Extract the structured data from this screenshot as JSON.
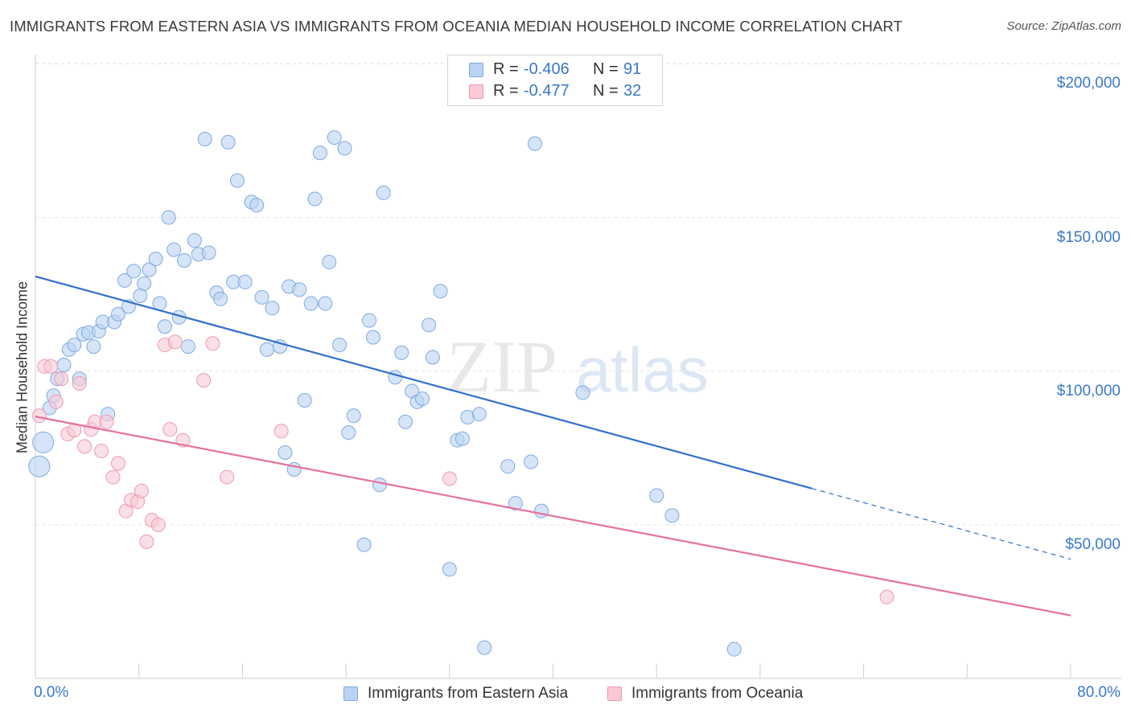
{
  "title": "IMMIGRANTS FROM EASTERN ASIA VS IMMIGRANTS FROM OCEANIA MEDIAN HOUSEHOLD INCOME CORRELATION CHART",
  "source": "Source: ZipAtlas.com",
  "watermark": {
    "part1": "ZIP",
    "part2": "atlas"
  },
  "stats": [
    {
      "r_label": "R =",
      "r_value": "-0.406",
      "n_label": "N =",
      "n_value": "91",
      "fill": "#b9d3f2",
      "stroke": "#7fa9e0"
    },
    {
      "r_label": "R =",
      "r_value": "-0.477",
      "n_label": "N =",
      "n_value": "32",
      "fill": "#f9c9d6",
      "stroke": "#ec9ab2"
    }
  ],
  "legend": [
    {
      "label": "Immigrants from Eastern Asia",
      "fill": "#b9d3f2",
      "stroke": "#7fa9e0"
    },
    {
      "label": "Immigrants from Oceania",
      "fill": "#f9c9d6",
      "stroke": "#ec9ab2"
    }
  ],
  "chart_data": {
    "type": "scatter",
    "title": "IMMIGRANTS FROM EASTERN ASIA VS IMMIGRANTS FROM OCEANIA MEDIAN HOUSEHOLD INCOME CORRELATION CHART",
    "xlabel": "",
    "ylabel": "Median Household Income",
    "xlim": [
      0,
      80
    ],
    "ylim": [
      0,
      210000
    ],
    "x_tick_labels": [
      "0.0%",
      "80.0%"
    ],
    "y_ticks": [
      {
        "value": 50000,
        "label": "$50,000"
      },
      {
        "value": 100000,
        "label": "$100,000"
      },
      {
        "value": 150000,
        "label": "$150,000"
      },
      {
        "value": 200000,
        "label": "$200,000"
      }
    ],
    "grid": true,
    "legend_position": "bottom",
    "series": [
      {
        "name": "Immigrants from Eastern Asia",
        "color": "#7fa9e0",
        "fill": "#b9d3f2",
        "trend_color": "#2f6fcd",
        "trend": {
          "x0": 0,
          "y0": 130800,
          "x1": 60,
          "y1": 61800,
          "dashed_to_x": 80,
          "dashed_to_y": 38800
        },
        "points": [
          [
            0.3,
            69000
          ],
          [
            0.6,
            76800
          ],
          [
            1.1,
            88000
          ],
          [
            1.4,
            92000
          ],
          [
            1.7,
            97500
          ],
          [
            2.2,
            102000
          ],
          [
            2.6,
            107000
          ],
          [
            3.0,
            108500
          ],
          [
            3.4,
            97500
          ],
          [
            3.7,
            112000
          ],
          [
            4.1,
            112500
          ],
          [
            4.5,
            108000
          ],
          [
            4.9,
            113000
          ],
          [
            5.2,
            116000
          ],
          [
            5.6,
            86000
          ],
          [
            6.1,
            116000
          ],
          [
            6.4,
            118500
          ],
          [
            7.2,
            121000
          ],
          [
            6.9,
            129500
          ],
          [
            7.6,
            132500
          ],
          [
            8.1,
            124500
          ],
          [
            8.4,
            128500
          ],
          [
            8.8,
            133000
          ],
          [
            9.3,
            136500
          ],
          [
            9.6,
            122000
          ],
          [
            10.0,
            114500
          ],
          [
            10.3,
            150000
          ],
          [
            10.7,
            139500
          ],
          [
            11.1,
            117500
          ],
          [
            11.5,
            136000
          ],
          [
            11.8,
            108000
          ],
          [
            12.3,
            142500
          ],
          [
            12.6,
            138000
          ],
          [
            13.4,
            138500
          ],
          [
            13.1,
            175500
          ],
          [
            14.0,
            125500
          ],
          [
            14.3,
            123500
          ],
          [
            14.9,
            174500
          ],
          [
            15.3,
            129000
          ],
          [
            15.6,
            162000
          ],
          [
            16.2,
            129000
          ],
          [
            16.7,
            155000
          ],
          [
            17.1,
            154000
          ],
          [
            17.5,
            124000
          ],
          [
            17.9,
            107000
          ],
          [
            18.3,
            120500
          ],
          [
            18.9,
            108000
          ],
          [
            19.3,
            73500
          ],
          [
            19.6,
            127500
          ],
          [
            20.0,
            68000
          ],
          [
            20.4,
            126500
          ],
          [
            20.8,
            90500
          ],
          [
            21.3,
            122000
          ],
          [
            21.6,
            156000
          ],
          [
            22.0,
            171000
          ],
          [
            22.4,
            122000
          ],
          [
            22.7,
            135500
          ],
          [
            23.1,
            176000
          ],
          [
            23.5,
            108500
          ],
          [
            23.9,
            172500
          ],
          [
            24.2,
            80000
          ],
          [
            24.6,
            85500
          ],
          [
            25.4,
            43500
          ],
          [
            25.8,
            116500
          ],
          [
            26.1,
            111000
          ],
          [
            26.6,
            63000
          ],
          [
            26.9,
            158000
          ],
          [
            27.8,
            98000
          ],
          [
            28.3,
            106000
          ],
          [
            28.6,
            83500
          ],
          [
            29.1,
            93500
          ],
          [
            29.5,
            90000
          ],
          [
            29.9,
            91000
          ],
          [
            30.4,
            115000
          ],
          [
            30.7,
            104500
          ],
          [
            31.3,
            126000
          ],
          [
            32.0,
            35500
          ],
          [
            32.6,
            77500
          ],
          [
            33.0,
            78000
          ],
          [
            33.4,
            85000
          ],
          [
            34.3,
            86000
          ],
          [
            34.7,
            10000
          ],
          [
            36.5,
            69000
          ],
          [
            37.1,
            57000
          ],
          [
            38.3,
            70500
          ],
          [
            38.6,
            174000
          ],
          [
            39.1,
            54500
          ],
          [
            42.3,
            93000
          ],
          [
            48.0,
            59500
          ],
          [
            49.2,
            53000
          ],
          [
            54.0,
            9500
          ]
        ]
      },
      {
        "name": "Immigrants from Oceania",
        "color": "#ec9ab2",
        "fill": "#f9c9d6",
        "trend_color": "#e8709a",
        "trend": {
          "x0": 0,
          "y0": 85200,
          "x1": 80,
          "y1": 20500
        },
        "points": [
          [
            0.3,
            85500
          ],
          [
            0.7,
            101500
          ],
          [
            1.2,
            101500
          ],
          [
            1.6,
            90000
          ],
          [
            2.0,
            97500
          ],
          [
            2.5,
            79500
          ],
          [
            3.0,
            80800
          ],
          [
            3.4,
            96000
          ],
          [
            3.8,
            75500
          ],
          [
            4.3,
            81000
          ],
          [
            4.6,
            83500
          ],
          [
            5.1,
            74000
          ],
          [
            5.5,
            83500
          ],
          [
            6.0,
            65500
          ],
          [
            6.4,
            70000
          ],
          [
            7.0,
            54500
          ],
          [
            7.4,
            58000
          ],
          [
            7.9,
            57500
          ],
          [
            8.2,
            61000
          ],
          [
            8.6,
            44500
          ],
          [
            9.0,
            51500
          ],
          [
            9.5,
            50000
          ],
          [
            10.0,
            108500
          ],
          [
            10.4,
            81000
          ],
          [
            10.8,
            109500
          ],
          [
            11.4,
            77500
          ],
          [
            13.0,
            97000
          ],
          [
            13.7,
            109000
          ],
          [
            14.8,
            65500
          ],
          [
            19.0,
            80500
          ],
          [
            32.0,
            65000
          ],
          [
            65.8,
            26500
          ]
        ]
      }
    ]
  }
}
